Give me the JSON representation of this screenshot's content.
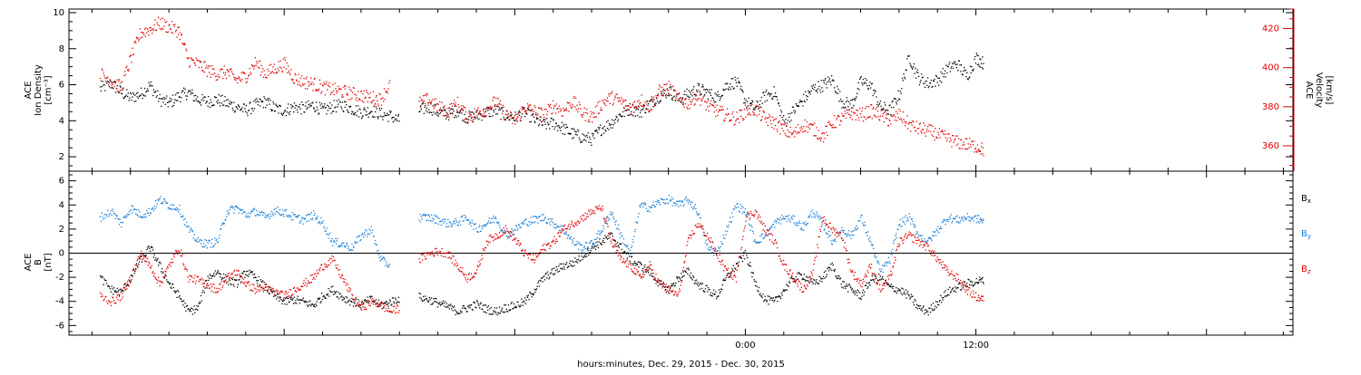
{
  "colors": {
    "black": "#000000",
    "red": "#e00000",
    "blue": "#1a7fd4"
  },
  "chart_data": [
    {
      "type": "scatter",
      "panel": "top",
      "left_axis_label": [
        "ACE",
        "Ion Density",
        "[cm⁻³]"
      ],
      "right_axis_label": [
        "ACE",
        "Velocity",
        "[km/s]"
      ],
      "left_ylim": [
        1.2,
        10.2
      ],
      "left_ticks": [
        "2",
        "4",
        "6",
        "8",
        "10"
      ],
      "left_tick_values": [
        2,
        4,
        6,
        8,
        10
      ],
      "right_ylim": [
        347,
        430
      ],
      "right_ticks": [
        "360",
        "380",
        "400",
        "420"
      ],
      "right_tick_values": [
        360,
        380,
        400,
        420
      ],
      "series": [
        {
          "color": "#000000",
          "axis": "left",
          "x": [
            -33.6,
            -33.0,
            -32.5,
            -32.0,
            -31.5,
            -31.0,
            -30.5,
            -30.0,
            -29.5,
            -29.0,
            -28.5,
            -28.0,
            -27.5,
            -27.0,
            -26.5,
            -26.0,
            -25.5,
            -25.0,
            -24.5,
            -24.0,
            -23.5,
            -23.0,
            -22.5,
            -22.0,
            -21.5,
            -21.0,
            -20.5,
            -20.0,
            -19.5,
            -19.0,
            -18.5,
            -18.0,
            -17.5,
            -17.0,
            -16.5,
            -16.0,
            -15.5,
            -15.0,
            -14.5,
            -14.0,
            -13.5,
            -13.0,
            -12.5,
            -12.0,
            -11.5,
            -11.0,
            -10.5,
            -10.0,
            -9.5,
            -9.0,
            -8.5,
            -8.0,
            -7.5,
            -7.0,
            -6.5,
            -6.0,
            -5.5,
            -5.0,
            -4.5,
            -4.0,
            -3.5,
            -3.0,
            -2.5,
            -2.0,
            -1.5,
            -1.0,
            -0.5,
            0.0,
            0.5,
            1.0,
            1.5,
            2.0,
            2.5,
            3.0,
            3.5,
            4.0,
            4.5,
            5.0,
            5.5,
            6.0,
            6.5,
            7.0,
            7.5,
            8.0,
            8.5,
            9.0,
            9.5,
            10.0,
            10.5,
            11.0,
            11.5,
            12.0,
            12.4
          ],
          "y": [
            5.8,
            6.1,
            5.6,
            5.3,
            5.5,
            6.0,
            5.2,
            5.0,
            5.4,
            5.6,
            5.2,
            5.1,
            5.2,
            5.0,
            4.8,
            4.6,
            4.9,
            5.1,
            4.7,
            4.6,
            4.8,
            4.7,
            4.9,
            4.6,
            4.8,
            4.9,
            4.7,
            4.5,
            4.6,
            4.4,
            4.3,
            4.0,
            null,
            4.6,
            4.8,
            4.5,
            4.4,
            4.6,
            4.2,
            4.3,
            4.5,
            4.6,
            4.3,
            4.2,
            4.5,
            4.1,
            3.8,
            3.9,
            3.6,
            3.3,
            3.1,
            3.0,
            3.6,
            3.9,
            4.4,
            4.7,
            4.5,
            5.0,
            5.4,
            5.7,
            5.2,
            5.5,
            5.8,
            5.6,
            5.3,
            6.0,
            6.2,
            5.1,
            4.7,
            5.4,
            5.6,
            3.9,
            4.6,
            5.2,
            5.8,
            6.0,
            6.3,
            5.1,
            4.9,
            6.2,
            6.0,
            4.8,
            4.6,
            5.5,
            7.6,
            6.4,
            6.1,
            6.3,
            6.9,
            7.2,
            6.5,
            7.5,
            7.2
          ]
        },
        {
          "color": "#e00000",
          "axis": "right",
          "x": [
            -33.6,
            -33.0,
            -32.5,
            -32.0,
            -31.5,
            -31.0,
            -30.5,
            -30.0,
            -29.5,
            -29.0,
            -28.5,
            -28.0,
            -27.5,
            -27.0,
            -26.5,
            -26.0,
            -25.5,
            -25.0,
            -24.5,
            -24.0,
            -23.5,
            -23.0,
            -22.5,
            -22.0,
            -21.5,
            -21.0,
            -20.5,
            -20.0,
            -19.5,
            -19.0,
            -18.5,
            -18.0,
            -17.5,
            -17.0,
            -16.5,
            -16.0,
            -15.5,
            -15.0,
            -14.5,
            -14.0,
            -13.5,
            -13.0,
            -12.5,
            -12.0,
            -11.5,
            -11.0,
            -10.5,
            -10.0,
            -9.5,
            -9.0,
            -8.5,
            -8.0,
            -7.5,
            -7.0,
            -6.5,
            -6.0,
            -5.5,
            -5.0,
            -4.5,
            -4.0,
            -3.5,
            -3.0,
            -2.5,
            -2.0,
            -1.5,
            -1.0,
            -0.5,
            0.0,
            0.5,
            1.0,
            1.5,
            2.0,
            2.5,
            3.0,
            3.5,
            4.0,
            4.5,
            5.0,
            5.5,
            6.0,
            6.5,
            7.0,
            7.5,
            8.0,
            8.5,
            9.0,
            9.5,
            10.0,
            10.5,
            11.0,
            11.5,
            12.0,
            12.4
          ],
          "y": [
            397,
            394,
            390,
            405,
            418,
            420,
            423,
            421,
            419,
            404,
            402,
            399,
            397,
            398,
            394,
            396,
            403,
            397,
            400,
            402,
            395,
            393,
            392,
            390,
            389,
            388,
            387,
            386,
            385,
            384,
            392,
            null,
            null,
            382,
            384,
            380,
            378,
            382,
            375,
            377,
            379,
            383,
            376,
            373,
            380,
            378,
            376,
            381,
            378,
            383,
            377,
            375,
            382,
            385,
            383,
            379,
            384,
            380,
            388,
            390,
            384,
            382,
            386,
            381,
            378,
            376,
            374,
            378,
            379,
            374,
            372,
            368,
            366,
            371,
            369,
            365,
            372,
            374,
            377,
            376,
            378,
            376,
            373,
            376,
            371,
            369,
            368,
            366,
            364,
            362,
            361,
            360,
            358
          ]
        }
      ]
    },
    {
      "type": "scatter",
      "panel": "bottom",
      "left_axis_label": [
        "ACE",
        "B",
        "[nT]"
      ],
      "ylim": [
        -6.8,
        6.8
      ],
      "ticks": [
        "-6",
        "-4",
        "-2",
        "0",
        "2",
        "4",
        "6"
      ],
      "tick_values": [
        -6,
        -4,
        -2,
        0,
        2,
        4,
        6
      ],
      "zero_line": true,
      "legend": [
        {
          "label": "B",
          "sub": "x",
          "color": "#000000"
        },
        {
          "label": "B",
          "sub": "y",
          "color": "#1a7fd4"
        },
        {
          "label": "B",
          "sub": "z",
          "color": "#e00000"
        }
      ],
      "series": [
        {
          "name": "Bx",
          "color": "#000000",
          "x": [
            -33.6,
            -33.0,
            -32.5,
            -32.0,
            -31.5,
            -31.0,
            -30.5,
            -30.0,
            -29.5,
            -29.0,
            -28.5,
            -28.0,
            -27.5,
            -27.0,
            -26.5,
            -26.0,
            -25.5,
            -25.0,
            -24.5,
            -24.0,
            -23.5,
            -23.0,
            -22.5,
            -22.0,
            -21.5,
            -21.0,
            -20.5,
            -20.0,
            -19.5,
            -19.0,
            -18.5,
            -18.0,
            -17.5,
            -17.0,
            -16.5,
            -16.0,
            -15.5,
            -15.0,
            -14.5,
            -14.0,
            -13.5,
            -13.0,
            -12.5,
            -12.0,
            -11.5,
            -11.0,
            -10.5,
            -10.0,
            -9.5,
            -9.0,
            -8.5,
            -8.0,
            -7.5,
            -7.0,
            -6.5,
            -6.0,
            -5.5,
            -5.0,
            -4.5,
            -4.0,
            -3.5,
            -3.0,
            -2.5,
            -2.0,
            -1.5,
            -1.0,
            -0.5,
            0.0,
            0.5,
            1.0,
            1.5,
            2.0,
            2.5,
            3.0,
            3.5,
            4.0,
            4.5,
            5.0,
            5.5,
            6.0,
            6.5,
            7.0,
            7.5,
            8.0,
            8.5,
            9.0,
            9.5,
            10.0,
            10.5,
            11.0,
            11.5,
            12.0,
            12.4
          ],
          "y": [
            -2.0,
            -3.0,
            -3.2,
            -2.0,
            -0.5,
            0.5,
            -1.0,
            -2.5,
            -3.5,
            -4.8,
            -4.5,
            -2.0,
            -1.5,
            -2.2,
            -2.5,
            -1.5,
            -2.0,
            -2.8,
            -3.5,
            -4.0,
            -3.8,
            -4.0,
            -4.3,
            -3.5,
            -3.0,
            -3.6,
            -4.0,
            -4.2,
            -3.8,
            -4.3,
            -4.0,
            -3.7,
            null,
            -3.6,
            -3.8,
            -4.1,
            -4.4,
            -4.8,
            -4.5,
            -4.2,
            -4.6,
            -4.8,
            -4.5,
            -4.3,
            -4.0,
            -3.0,
            -2.0,
            -1.5,
            -1.0,
            -0.8,
            -0.2,
            0.5,
            1.0,
            1.5,
            0.5,
            -0.5,
            -1.0,
            -1.5,
            -2.5,
            -3.0,
            -2.0,
            -1.5,
            -2.5,
            -3.0,
            -3.5,
            -2.0,
            -1.0,
            0.0,
            -2.5,
            -3.8,
            -4.0,
            -3.0,
            -2.0,
            -1.8,
            -2.5,
            -2.0,
            -1.0,
            -2.5,
            -3.0,
            -3.5,
            -2.2,
            -2.0,
            -2.8,
            -3.0,
            -3.5,
            -4.5,
            -4.8,
            -4.0,
            -3.2,
            -2.8,
            -2.5,
            -2.3,
            -2.2
          ]
        },
        {
          "name": "By",
          "color": "#1a7fd4",
          "x": [
            -33.6,
            -33.0,
            -32.5,
            -32.0,
            -31.5,
            -31.0,
            -30.5,
            -30.0,
            -29.5,
            -29.0,
            -28.5,
            -28.0,
            -27.5,
            -27.0,
            -26.5,
            -26.0,
            -25.5,
            -25.0,
            -24.5,
            -24.0,
            -23.5,
            -23.0,
            -22.5,
            -22.0,
            -21.5,
            -21.0,
            -20.5,
            -20.0,
            -19.5,
            -19.0,
            -18.5,
            -18.0,
            -17.5,
            -17.0,
            -16.5,
            -16.0,
            -15.5,
            -15.0,
            -14.5,
            -14.0,
            -13.5,
            -13.0,
            -12.5,
            -12.0,
            -11.5,
            -11.0,
            -10.5,
            -10.0,
            -9.5,
            -9.0,
            -8.5,
            -8.0,
            -7.5,
            -7.0,
            -6.5,
            -6.0,
            -5.5,
            -5.0,
            -4.5,
            -4.0,
            -3.5,
            -3.0,
            -2.5,
            -2.0,
            -1.5,
            -1.0,
            -0.5,
            0.0,
            0.5,
            1.0,
            1.5,
            2.0,
            2.5,
            3.0,
            3.5,
            4.0,
            4.5,
            5.0,
            5.5,
            6.0,
            6.5,
            7.0,
            7.5,
            8.0,
            8.5,
            9.0,
            9.5,
            10.0,
            10.5,
            11.0,
            11.5,
            12.0,
            12.4
          ],
          "y": [
            3.0,
            3.5,
            2.5,
            3.8,
            3.2,
            3.5,
            4.5,
            4.0,
            3.8,
            2.0,
            1.0,
            0.8,
            1.0,
            3.5,
            3.8,
            3.2,
            3.5,
            3.0,
            3.6,
            3.4,
            3.0,
            2.8,
            3.2,
            2.5,
            1.0,
            0.8,
            0.5,
            1.5,
            2.0,
            -0.5,
            -1.0,
            null,
            null,
            3.0,
            3.0,
            2.8,
            2.5,
            2.6,
            3.0,
            2.0,
            2.5,
            3.0,
            1.5,
            2.0,
            2.6,
            2.8,
            3.0,
            2.5,
            2.0,
            1.0,
            0.5,
            0.8,
            2.0,
            3.5,
            1.5,
            0.0,
            4.0,
            3.8,
            4.3,
            4.5,
            4.0,
            4.5,
            3.5,
            0.5,
            0.0,
            2.0,
            4.0,
            3.5,
            1.0,
            1.5,
            2.5,
            3.0,
            2.8,
            2.2,
            3.5,
            2.5,
            1.0,
            2.0,
            1.5,
            3.0,
            1.0,
            -1.5,
            -0.5,
            2.5,
            3.0,
            1.5,
            1.0,
            2.0,
            3.0,
            2.8,
            3.0,
            2.9,
            2.7
          ]
        },
        {
          "name": "Bz",
          "color": "#e00000",
          "x": [
            -33.6,
            -33.0,
            -32.5,
            -32.0,
            -31.5,
            -31.0,
            -30.5,
            -30.0,
            -29.5,
            -29.0,
            -28.5,
            -28.0,
            -27.5,
            -27.0,
            -26.5,
            -26.0,
            -25.5,
            -25.0,
            -24.5,
            -24.0,
            -23.5,
            -23.0,
            -22.5,
            -22.0,
            -21.5,
            -21.0,
            -20.5,
            -20.0,
            -19.5,
            -19.0,
            -18.5,
            -18.0,
            -17.5,
            -17.0,
            -16.5,
            -16.0,
            -15.5,
            -15.0,
            -14.5,
            -14.0,
            -13.5,
            -13.0,
            -12.5,
            -12.0,
            -11.5,
            -11.0,
            -10.5,
            -10.0,
            -9.5,
            -9.0,
            -8.5,
            -8.0,
            -7.5,
            -7.0,
            -6.5,
            -6.0,
            -5.5,
            -5.0,
            -4.5,
            -4.0,
            -3.5,
            -3.0,
            -2.5,
            -2.0,
            -1.5,
            -1.0,
            -0.5,
            0.0,
            0.5,
            1.0,
            1.5,
            2.0,
            2.5,
            3.0,
            3.5,
            4.0,
            4.5,
            5.0,
            5.5,
            6.0,
            6.5,
            7.0,
            7.5,
            8.0,
            8.5,
            9.0,
            9.5,
            10.0,
            10.5,
            11.0,
            11.5,
            12.0,
            12.4
          ],
          "y": [
            -3.5,
            -4.0,
            -3.5,
            -2.0,
            0.0,
            -1.0,
            -2.5,
            -1.0,
            0.5,
            -2.0,
            -2.2,
            -2.6,
            -3.0,
            -2.0,
            -1.5,
            -2.5,
            -3.0,
            -2.8,
            -3.2,
            -3.5,
            -3.0,
            -2.5,
            -2.0,
            -1.0,
            -0.5,
            -2.0,
            -3.5,
            -4.5,
            -4.0,
            -4.2,
            -4.8,
            -4.5,
            null,
            -0.5,
            0.0,
            0.2,
            0.0,
            -1.0,
            -2.0,
            -1.5,
            1.0,
            1.5,
            2.0,
            1.2,
            0.0,
            -0.5,
            0.5,
            1.0,
            2.0,
            2.5,
            3.0,
            3.5,
            3.8,
            1.0,
            -0.5,
            -1.0,
            -2.0,
            -1.0,
            -2.5,
            -3.0,
            -3.5,
            1.0,
            2.5,
            1.5,
            0.0,
            -1.5,
            -2.0,
            3.0,
            3.5,
            2.0,
            1.0,
            -1.0,
            -2.0,
            -3.0,
            -1.5,
            3.0,
            2.0,
            1.5,
            -1.5,
            -2.5,
            -1.0,
            -3.0,
            -2.0,
            1.0,
            1.5,
            1.0,
            0.5,
            -0.5,
            -1.5,
            -2.0,
            -3.0,
            -3.6,
            -3.8
          ]
        }
      ]
    }
  ],
  "x_axis": {
    "xlim": [
      -35.2,
      28.5
    ],
    "tick_labels": [
      "0:00",
      "12:00"
    ],
    "label_values": [
      0,
      12
    ],
    "minor_step_hours": 2,
    "label": "hours:minutes, Dec. 29, 2015 - Dec. 30, 2015"
  }
}
